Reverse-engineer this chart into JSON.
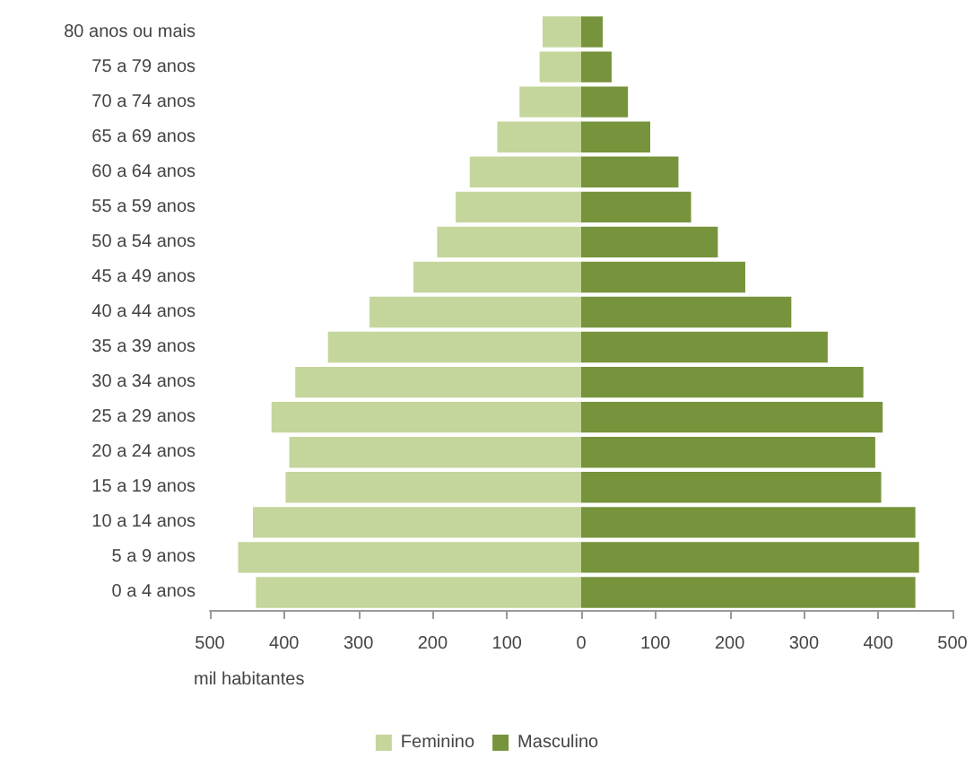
{
  "chart_data": {
    "type": "bar",
    "orientation": "horizontal",
    "xlabel": "mil habitantes",
    "categories": [
      "80 anos ou mais",
      "75 a 79 anos",
      "70 a 74 anos",
      "65 a 69 anos",
      "60 a 64 anos",
      "55 a 59 anos",
      "50 a 54 anos",
      "45 a 49 anos",
      "40 a 44 anos",
      "35 a 39 anos",
      "30 a 34 anos",
      "25 a 29 anos",
      "20 a 24 anos",
      "15 a 19 anos",
      "10 a 14 anos",
      "5 a 9 anos",
      "0 a 4 anos"
    ],
    "series": [
      {
        "name": "Feminino",
        "color": "#c4d69b",
        "values": [
          -52,
          -56,
          -83,
          -113,
          -150,
          -169,
          -194,
          -226,
          -285,
          -341,
          -385,
          -417,
          -393,
          -398,
          -442,
          -462,
          -438
        ]
      },
      {
        "name": "Masculino",
        "color": "#77933c",
        "values": [
          29,
          41,
          63,
          93,
          131,
          148,
          184,
          221,
          283,
          332,
          380,
          406,
          396,
          404,
          450,
          455,
          450
        ]
      }
    ],
    "xlim": [
      -500,
      500
    ],
    "xticks": [
      {
        "value": -500,
        "label": "500"
      },
      {
        "value": -400,
        "label": "400"
      },
      {
        "value": -300,
        "label": "300"
      },
      {
        "value": -200,
        "label": "200"
      },
      {
        "value": -100,
        "label": "100"
      },
      0,
      100,
      200,
      300,
      400,
      500
    ],
    "stacked": true,
    "grid": false,
    "legend": "bottom"
  }
}
